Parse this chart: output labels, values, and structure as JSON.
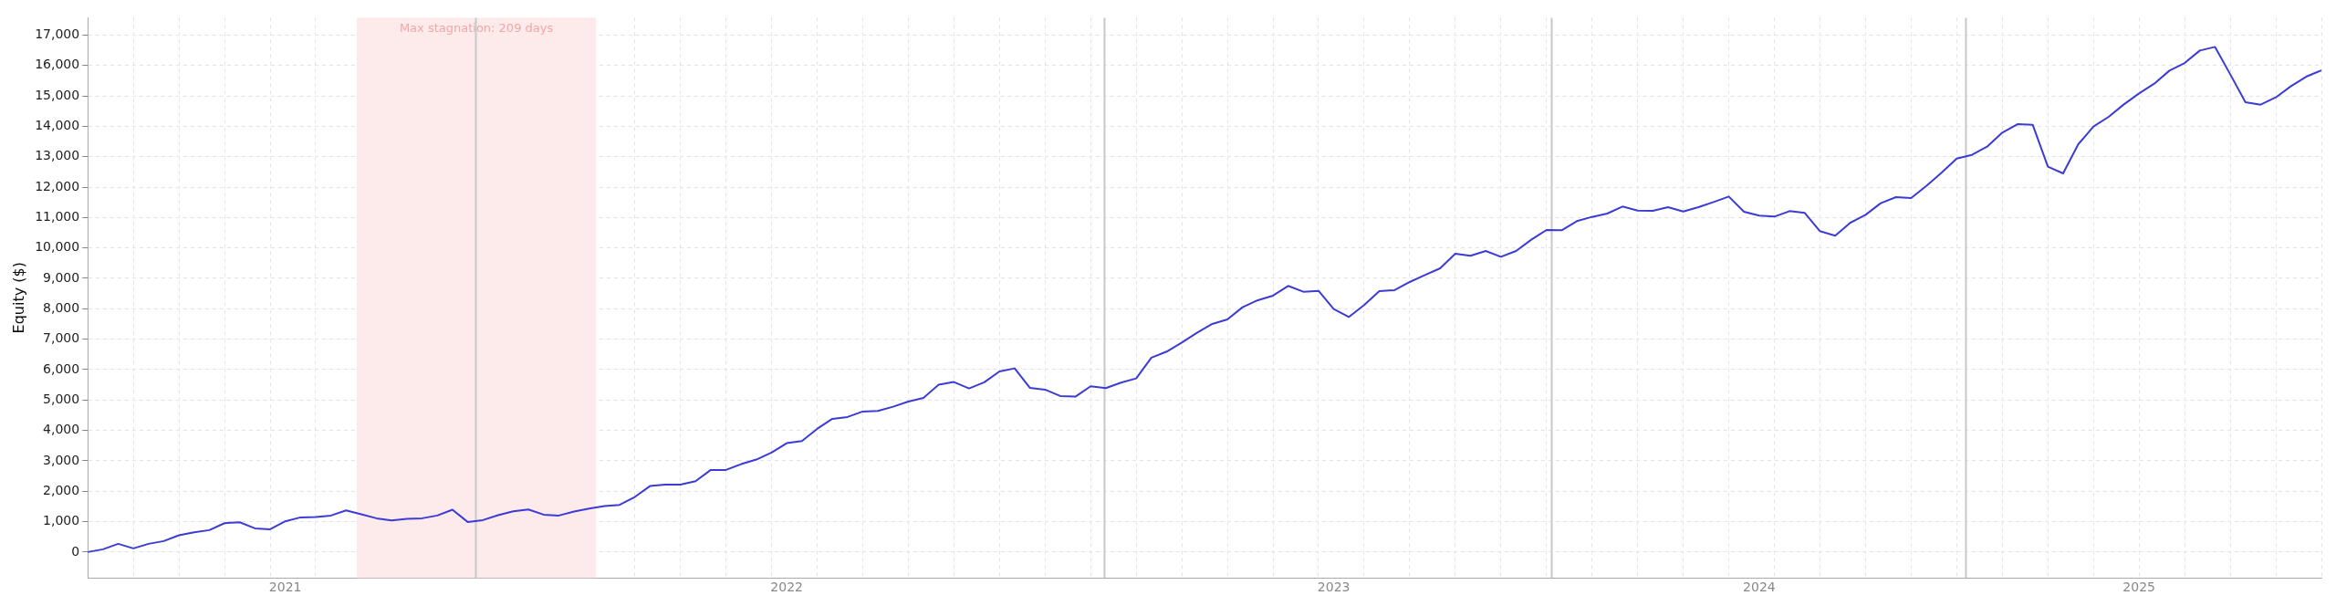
{
  "chart_data": {
    "type": "line",
    "ylabel": "Equity ($)",
    "color": "#3b3bd6",
    "grid": true,
    "marker": "none",
    "line_style": "solid",
    "ylim": [
      -850,
      17570
    ],
    "yticks": [
      {
        "value": 0,
        "label": "0"
      },
      {
        "value": 1000,
        "label": "1,000"
      },
      {
        "value": 2000,
        "label": "2,000"
      },
      {
        "value": 3000,
        "label": "3,000"
      },
      {
        "value": 4000,
        "label": "4,000"
      },
      {
        "value": 5000,
        "label": "5,000"
      },
      {
        "value": 6000,
        "label": "6,000"
      },
      {
        "value": 7000,
        "label": "7,000"
      },
      {
        "value": 8000,
        "label": "8,000"
      },
      {
        "value": 9000,
        "label": "9,000"
      },
      {
        "value": 10000,
        "label": "10,000"
      },
      {
        "value": 11000,
        "label": "11,000"
      },
      {
        "value": 12000,
        "label": "12,000"
      },
      {
        "value": 13000,
        "label": "13,000"
      },
      {
        "value": 14000,
        "label": "14,000"
      },
      {
        "value": 15000,
        "label": "15,000"
      },
      {
        "value": 16000,
        "label": "16,000"
      },
      {
        "value": 17000,
        "label": "17,000"
      }
    ],
    "categories": [
      null,
      null,
      null,
      null,
      null,
      null,
      null,
      null,
      null,
      null,
      null,
      null,
      null,
      "2021",
      null,
      null,
      null,
      null,
      null,
      null,
      null,
      null,
      null,
      null,
      null,
      null,
      null,
      null,
      null,
      null,
      null,
      null,
      null,
      null,
      null,
      null,
      null,
      null,
      null,
      null,
      null,
      null,
      null,
      null,
      null,
      null,
      "2022",
      null,
      null,
      null,
      null,
      null,
      null,
      null,
      null,
      null,
      null,
      null,
      null,
      null,
      null,
      null,
      null,
      null,
      null,
      null,
      null,
      null,
      null,
      null,
      null,
      null,
      null,
      null,
      null,
      null,
      null,
      null,
      null,
      null,
      null,
      null,
      "2023",
      null,
      null,
      null,
      null,
      null,
      null,
      null,
      null,
      null,
      null,
      null,
      null,
      null,
      null,
      null,
      null,
      null,
      null,
      null,
      null,
      null,
      null,
      null,
      null,
      null,
      null,
      null,
      "2024",
      null,
      null,
      null,
      null,
      null,
      null,
      null,
      null,
      null,
      null,
      null,
      null,
      null,
      null,
      null,
      null,
      null,
      null,
      null,
      null,
      null,
      null,
      null,
      null,
      "2025",
      null,
      null,
      null,
      null,
      null,
      null,
      null,
      null,
      null,
      null,
      null,
      null
    ],
    "annotations": [
      "Max stagnation: 209 days"
    ],
    "values": [
      0,
      90,
      270,
      120,
      270,
      360,
      550,
      650,
      720,
      950,
      980,
      780,
      750,
      1010,
      1140,
      1150,
      1200,
      1370,
      1240,
      1110,
      1040,
      1090,
      1110,
      1200,
      1390,
      990,
      1050,
      1210,
      1340,
      1400,
      1230,
      1200,
      1330,
      1430,
      1510,
      1550,
      1810,
      2170,
      2220,
      2220,
      2330,
      2700,
      2700,
      2890,
      3040,
      3270,
      3580,
      3650,
      4050,
      4380,
      4440,
      4620,
      4640,
      4780,
      4950,
      5070,
      5500,
      5590,
      5380,
      5580,
      5940,
      6040,
      5400,
      5340,
      5130,
      5110,
      5450,
      5390,
      5570,
      5710,
      6390,
      6590,
      6890,
      7210,
      7500,
      7650,
      8050,
      8280,
      8430,
      8750,
      8560,
      8590,
      7990,
      7730,
      8120,
      8580,
      8610,
      8880,
      9110,
      9330,
      9810,
      9740,
      9900,
      9710,
      9900,
      10270,
      10590,
      10580,
      10880,
      11020,
      11130,
      11360,
      11230,
      11220,
      11340,
      11200,
      11340,
      11510,
      11690,
      11190,
      11060,
      11030,
      11210,
      11150,
      10550,
      10400,
      10830,
      11090,
      11470,
      11670,
      11640,
      12040,
      12470,
      12940,
      13060,
      13330,
      13790,
      14070,
      14050,
      12670,
      12450,
      13410,
      13990,
      14310,
      14720,
      15080,
      15400,
      15830,
      16080,
      16490,
      16610,
      15710,
      14790,
      14710,
      14950,
      15320,
      15630,
      15840
    ]
  }
}
